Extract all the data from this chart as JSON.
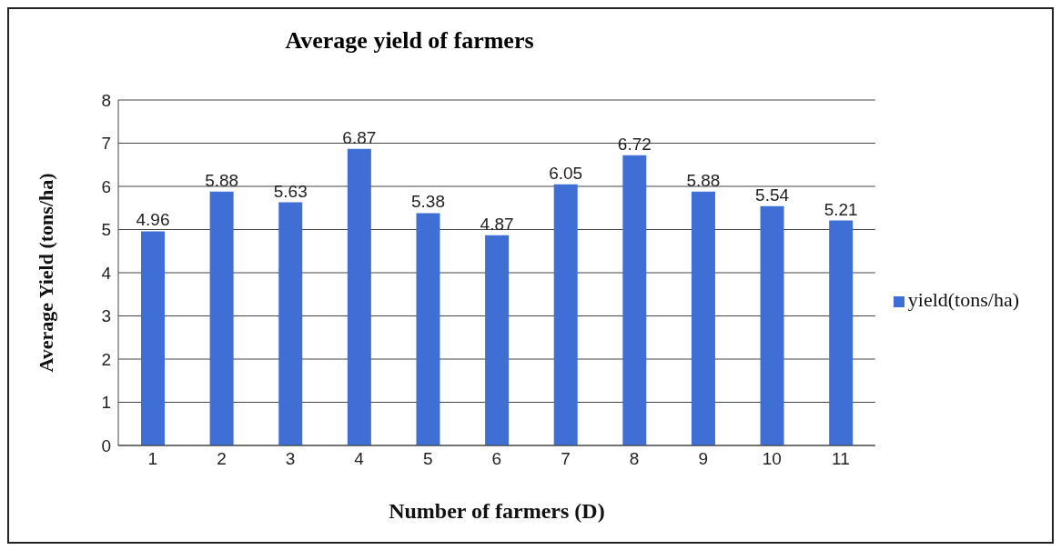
{
  "chart_data": {
    "type": "bar",
    "title": "Average yield of farmers",
    "xlabel": "Number of farmers (D)",
    "ylabel": "Average Yield (tons/ha)",
    "categories": [
      "1",
      "2",
      "3",
      "4",
      "5",
      "6",
      "7",
      "8",
      "9",
      "10",
      "11"
    ],
    "series": [
      {
        "name": "yield(tons/ha)",
        "color": "#3f6fd4",
        "values": [
          4.96,
          5.88,
          5.63,
          6.87,
          5.38,
          4.87,
          6.05,
          6.72,
          5.88,
          5.54,
          5.21
        ]
      }
    ],
    "ylim": [
      0,
      8
    ],
    "yticks": [
      0,
      1,
      2,
      3,
      4,
      5,
      6,
      7,
      8
    ],
    "grid": "y",
    "legend": "right",
    "data_labels": true
  }
}
